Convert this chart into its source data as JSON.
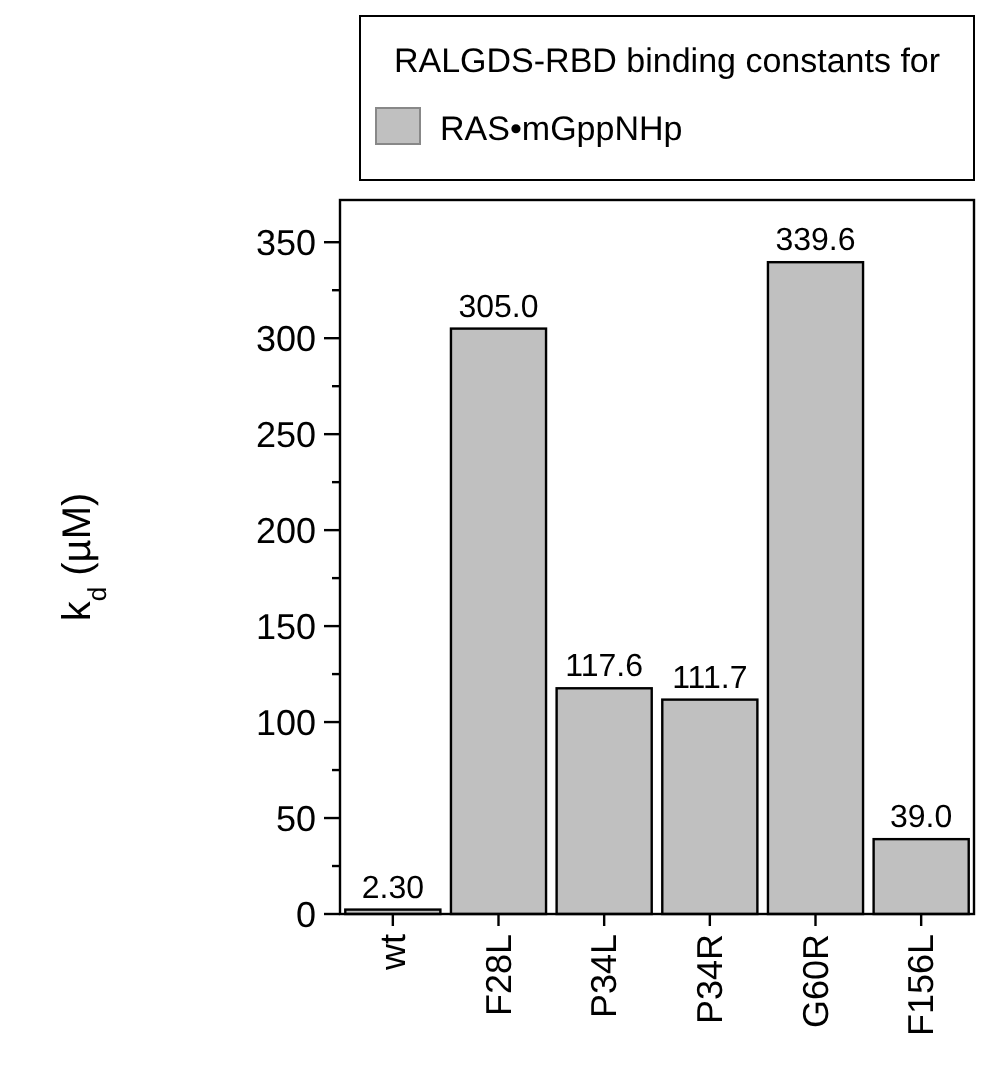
{
  "chart_data": {
    "type": "bar",
    "ylabel": "k$_{d}$ (µM)",
    "legend_title": "RALGDS-RBD binding constants for",
    "legend": "top",
    "categories": [
      "wt",
      "F28L",
      "P34L",
      "P34R",
      "G60R",
      "F156L"
    ],
    "series": [
      {
        "name": "RAS•mGppNHp",
        "color": "#c0c0c0",
        "values": [
          2.3,
          305.0,
          117.6,
          111.7,
          339.6,
          39.0
        ],
        "value_labels": [
          "2.30",
          "305.0",
          "117.6",
          "111.7",
          "339.6",
          "39.0"
        ]
      }
    ],
    "ylim": [
      0,
      372
    ],
    "yticks": [
      0,
      {
        "value": 25,
        "label": null
      },
      50,
      {
        "value": 75,
        "label": null
      },
      100,
      {
        "value": 125,
        "label": null
      },
      150,
      {
        "value": 175,
        "label": null
      },
      200,
      {
        "value": 225,
        "label": null
      },
      250,
      {
        "value": 275,
        "label": null
      },
      300,
      {
        "value": 325,
        "label": null
      },
      350
    ],
    "grid": false
  }
}
